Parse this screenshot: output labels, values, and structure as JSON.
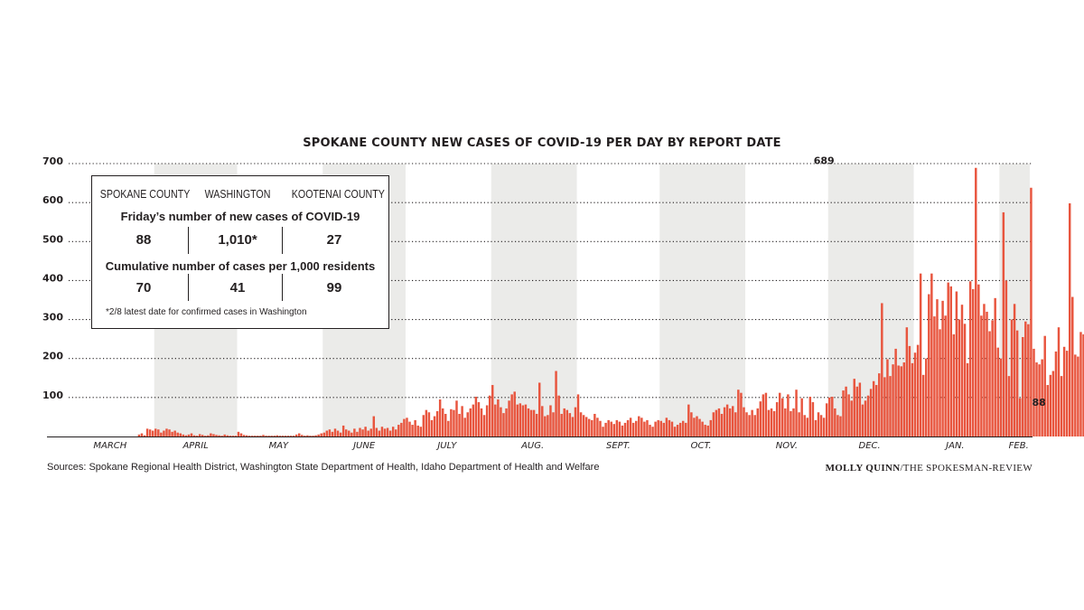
{
  "chart_data": {
    "type": "bar",
    "title": "SPOKANE COUNTY NEW CASES OF COVID-19 PER DAY BY REPORT DATE",
    "ylim": [
      0,
      700
    ],
    "yticks": [
      100,
      200,
      300,
      400,
      500,
      600,
      700
    ],
    "x_start": "2020-03-01",
    "x_end": "2021-02-12",
    "month_labels": [
      {
        "label": "MARCH",
        "date": "2020-03-16"
      },
      {
        "label": "APRIL",
        "date": "2020-04-16"
      },
      {
        "label": "MAY",
        "date": "2020-05-16"
      },
      {
        "label": "JUNE",
        "date": "2020-06-16"
      },
      {
        "label": "JULY",
        "date": "2020-07-16"
      },
      {
        "label": "AUG.",
        "date": "2020-08-16"
      },
      {
        "label": "SEPT.",
        "date": "2020-09-16"
      },
      {
        "label": "OCT.",
        "date": "2020-10-16"
      },
      {
        "label": "NOV.",
        "date": "2020-11-16"
      },
      {
        "label": "DEC.",
        "date": "2020-12-16"
      },
      {
        "label": "JAN.",
        "date": "2021-01-16"
      },
      {
        "label": "FEB.",
        "date": "2021-02-08"
      }
    ],
    "shaded_months": [
      [
        "2020-04-01",
        "2020-05-01"
      ],
      [
        "2020-06-01",
        "2020-07-01"
      ],
      [
        "2020-08-01",
        "2020-09-01"
      ],
      [
        "2020-10-01",
        "2020-11-01"
      ],
      [
        "2020-12-01",
        "2021-01-01"
      ],
      [
        "2021-02-01",
        "2021-02-12"
      ]
    ],
    "grid": "dotted horizontal",
    "bar_color": "#e8553e",
    "shade_color": "#ebebe9",
    "annotations": [
      {
        "text": "689",
        "date": "2020-11-29",
        "value": 689
      },
      {
        "text": "88",
        "date": "2021-02-12",
        "value": 88
      }
    ],
    "series": [
      {
        "start_date": "2020-03-01",
        "values": [
          0,
          0,
          0,
          0,
          0,
          0,
          0,
          0,
          0,
          0,
          0,
          0,
          0,
          0,
          0,
          0,
          0,
          0,
          0,
          0,
          0,
          0,
          0,
          0,
          0,
          5,
          8,
          3,
          20,
          18,
          15,
          20,
          18,
          10,
          15,
          20,
          18,
          12,
          15,
          10,
          8,
          5,
          3,
          5,
          8,
          3,
          2,
          6,
          4,
          2,
          3,
          8,
          6,
          4,
          3,
          2,
          5,
          3,
          2,
          2,
          2,
          12,
          8,
          4,
          3,
          2,
          2,
          2,
          2,
          2,
          4,
          2,
          2,
          2,
          2,
          3,
          2,
          2,
          2,
          2,
          2,
          2,
          5,
          8,
          4,
          2,
          3,
          2,
          2,
          3,
          5,
          8,
          10,
          15,
          18,
          12,
          20,
          15,
          10,
          28,
          18,
          15,
          10,
          20,
          12,
          22,
          18,
          25,
          15,
          20,
          52,
          22,
          15,
          25,
          20,
          22,
          15,
          25,
          18,
          30,
          35,
          45,
          48,
          38,
          30,
          42,
          28,
          25,
          55,
          68,
          62,
          42,
          52,
          65,
          95,
          72,
          58,
          40,
          70,
          68,
          92,
          58,
          78,
          48,
          62,
          72,
          82,
          102,
          88,
          72,
          55,
          80,
          105,
          132,
          82,
          95,
          75,
          60,
          72,
          92,
          108,
          115,
          82,
          85,
          80,
          82,
          72,
          68,
          68,
          58,
          138,
          78,
          52,
          55,
          80,
          62,
          168,
          105,
          58,
          72,
          68,
          60,
          50,
          75,
          108,
          62,
          55,
          50,
          45,
          42,
          58,
          48,
          40,
          25,
          35,
          42,
          38,
          32,
          42,
          38,
          28,
          35,
          42,
          48,
          35,
          40,
          52,
          48,
          38,
          42,
          30,
          25,
          38,
          42,
          40,
          35,
          48,
          42,
          38,
          25,
          30,
          35,
          40,
          35,
          82,
          62,
          48,
          52,
          45,
          38,
          30,
          28,
          42,
          62,
          68,
          72,
          58,
          75,
          82,
          72,
          78,
          62,
          120,
          112,
          75,
          62,
          55,
          68,
          55,
          72,
          90,
          108,
          112,
          68,
          72,
          65,
          88,
          112,
          98,
          72,
          108,
          65,
          72,
          120,
          62,
          98,
          55,
          48,
          102,
          88,
          42,
          62,
          55,
          48,
          85,
          100,
          102,
          72,
          55,
          52,
          118,
          128,
          108,
          92,
          148,
          128,
          138,
          82,
          92,
          105,
          122,
          142,
          132,
          162,
          342,
          152,
          198,
          155,
          185,
          225,
          182,
          180,
          190,
          280,
          232,
          188,
          215,
          235,
          418,
          158,
          200,
          365,
          418,
          308,
          352,
          275,
          348,
          310,
          395,
          385,
          262,
          372,
          300,
          338,
          289,
          188,
          398,
          378,
          689,
          390,
          310,
          340,
          320,
          270,
          298,
          355,
          228,
          200,
          575,
          400,
          155,
          300,
          340,
          272,
          98,
          255,
          295,
          288,
          638,
          225,
          190,
          185,
          198,
          258,
          132,
          158,
          168,
          218,
          280,
          155,
          230,
          220,
          598,
          358,
          210,
          205,
          268,
          262,
          335,
          440,
          635,
          420,
          260,
          275,
          320,
          500,
          350,
          340,
          252,
          218,
          252,
          188,
          120,
          150,
          128,
          172,
          160,
          190,
          208,
          145,
          72,
          178,
          235,
          260,
          500,
          248,
          220,
          190,
          155,
          198,
          208,
          155,
          158,
          148,
          148,
          148,
          78,
          88,
          162,
          112,
          68,
          92,
          142,
          32,
          148,
          52,
          115,
          62,
          98,
          118,
          88
        ]
      }
    ]
  },
  "infobox": {
    "columns": [
      "SPOKANE COUNTY",
      "WASHINGTON",
      "KOOTENAI COUNTY"
    ],
    "row1_label": "Friday’s number of new cases of COVID-19",
    "row1_values": [
      "88",
      "1,010*",
      "27"
    ],
    "row2_label": "Cumulative number of cases per 1,000 residents",
    "row2_values": [
      "70",
      "41",
      "99"
    ],
    "footnote": "*2/8 latest date for confirmed cases in Washington"
  },
  "sources": "Sources: Spokane Regional Health District, Washington State Department of Health, Idaho Department of Health and Welfare",
  "credit": {
    "name": "MOLLY QUINN",
    "outlet": "/THE SPOKESMAN-REVIEW"
  }
}
